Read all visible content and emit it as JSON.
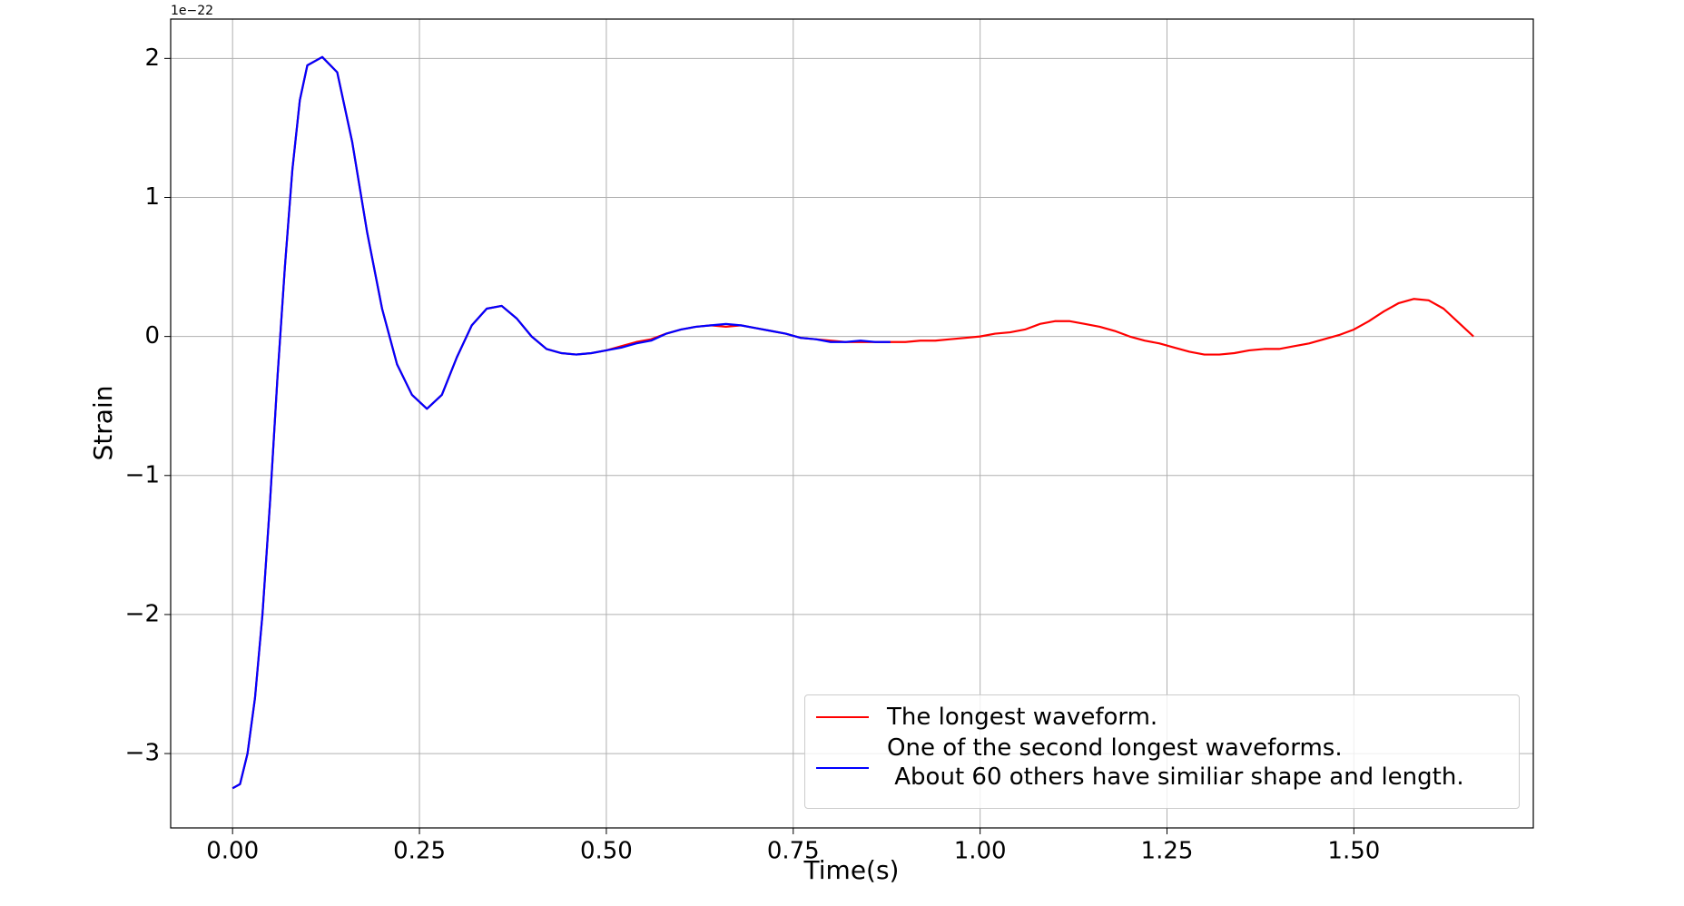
{
  "chart_data": {
    "type": "line",
    "xlabel": "Time(s)",
    "ylabel": "Strain",
    "y_offset_label": "1e−22",
    "xlim": [
      -0.0828,
      1.74
    ],
    "ylim": [
      -3.535,
      2.283
    ],
    "xticks": [
      {
        "value": 0,
        "label": "0.00"
      },
      {
        "value": 0.25,
        "label": "0.25"
      },
      {
        "value": 0.5,
        "label": "0.50"
      },
      {
        "value": 0.75,
        "label": "0.75"
      },
      {
        "value": 1,
        "label": "1.00"
      },
      {
        "value": 1.25,
        "label": "1.25"
      },
      {
        "value": 1.5,
        "label": "1.50"
      }
    ],
    "yticks": [
      {
        "value": -3,
        "label": "−3"
      },
      {
        "value": -2,
        "label": "−2"
      },
      {
        "value": -1,
        "label": "−1"
      },
      0,
      1,
      2
    ],
    "grid": true,
    "legend": "lower right",
    "series": [
      {
        "name": "The longest waveform.",
        "color": "#ff0000",
        "x": [
          0.0,
          0.01,
          0.02,
          0.03,
          0.04,
          0.05,
          0.06,
          0.07,
          0.08,
          0.09,
          0.1,
          0.12,
          0.14,
          0.16,
          0.18,
          0.2,
          0.22,
          0.24,
          0.26,
          0.28,
          0.3,
          0.32,
          0.34,
          0.36,
          0.38,
          0.4,
          0.42,
          0.44,
          0.46,
          0.48,
          0.5,
          0.52,
          0.54,
          0.56,
          0.58,
          0.6,
          0.62,
          0.64,
          0.66,
          0.68,
          0.7,
          0.72,
          0.74,
          0.76,
          0.78,
          0.8,
          0.82,
          0.84,
          0.86,
          0.88,
          0.9,
          0.92,
          0.94,
          0.96,
          0.98,
          1.0,
          1.02,
          1.04,
          1.06,
          1.08,
          1.1,
          1.12,
          1.14,
          1.16,
          1.18,
          1.2,
          1.22,
          1.24,
          1.26,
          1.28,
          1.3,
          1.32,
          1.34,
          1.36,
          1.38,
          1.4,
          1.42,
          1.44,
          1.46,
          1.48,
          1.5,
          1.52,
          1.54,
          1.56,
          1.58,
          1.6,
          1.62,
          1.64,
          1.66
        ],
        "values": [
          -3.25,
          -3.22,
          -3.0,
          -2.6,
          -2.0,
          -1.2,
          -0.3,
          0.5,
          1.2,
          1.7,
          1.95,
          2.01,
          1.9,
          1.4,
          0.75,
          0.2,
          -0.2,
          -0.42,
          -0.52,
          -0.42,
          -0.15,
          0.08,
          0.2,
          0.22,
          0.13,
          0.0,
          -0.09,
          -0.12,
          -0.13,
          -0.12,
          -0.1,
          -0.07,
          -0.04,
          -0.02,
          0.02,
          0.05,
          0.07,
          0.08,
          0.07,
          0.08,
          0.06,
          0.04,
          0.02,
          -0.01,
          -0.02,
          -0.03,
          -0.04,
          -0.04,
          -0.04,
          -0.04,
          -0.04,
          -0.03,
          -0.03,
          -0.02,
          -0.01,
          0.0,
          0.02,
          0.03,
          0.05,
          0.09,
          0.11,
          0.11,
          0.09,
          0.07,
          0.04,
          0.0,
          -0.03,
          -0.05,
          -0.08,
          -0.11,
          -0.13,
          -0.13,
          -0.12,
          -0.1,
          -0.09,
          -0.09,
          -0.07,
          -0.05,
          -0.02,
          0.01,
          0.05,
          0.11,
          0.18,
          0.24,
          0.27,
          0.26,
          0.2,
          0.1,
          0.0
        ]
      },
      {
        "name": "One of the second longest waveforms.\n About 60 others have similiar shape and length.",
        "color": "#0000ff",
        "x": [
          0.0,
          0.01,
          0.02,
          0.03,
          0.04,
          0.05,
          0.06,
          0.07,
          0.08,
          0.09,
          0.1,
          0.12,
          0.14,
          0.16,
          0.18,
          0.2,
          0.22,
          0.24,
          0.26,
          0.28,
          0.3,
          0.32,
          0.34,
          0.36,
          0.38,
          0.4,
          0.42,
          0.44,
          0.46,
          0.48,
          0.5,
          0.52,
          0.54,
          0.56,
          0.58,
          0.6,
          0.62,
          0.64,
          0.66,
          0.68,
          0.7,
          0.72,
          0.74,
          0.76,
          0.78,
          0.8,
          0.82,
          0.84,
          0.86,
          0.88
        ],
        "values": [
          -3.25,
          -3.22,
          -3.0,
          -2.6,
          -2.0,
          -1.2,
          -0.3,
          0.5,
          1.2,
          1.7,
          1.95,
          2.01,
          1.9,
          1.4,
          0.75,
          0.2,
          -0.2,
          -0.42,
          -0.52,
          -0.42,
          -0.15,
          0.08,
          0.2,
          0.22,
          0.13,
          0.0,
          -0.09,
          -0.12,
          -0.13,
          -0.12,
          -0.1,
          -0.08,
          -0.05,
          -0.03,
          0.02,
          0.05,
          0.07,
          0.08,
          0.09,
          0.08,
          0.06,
          0.04,
          0.02,
          -0.01,
          -0.02,
          -0.04,
          -0.04,
          -0.03,
          -0.04,
          -0.04
        ]
      }
    ]
  }
}
